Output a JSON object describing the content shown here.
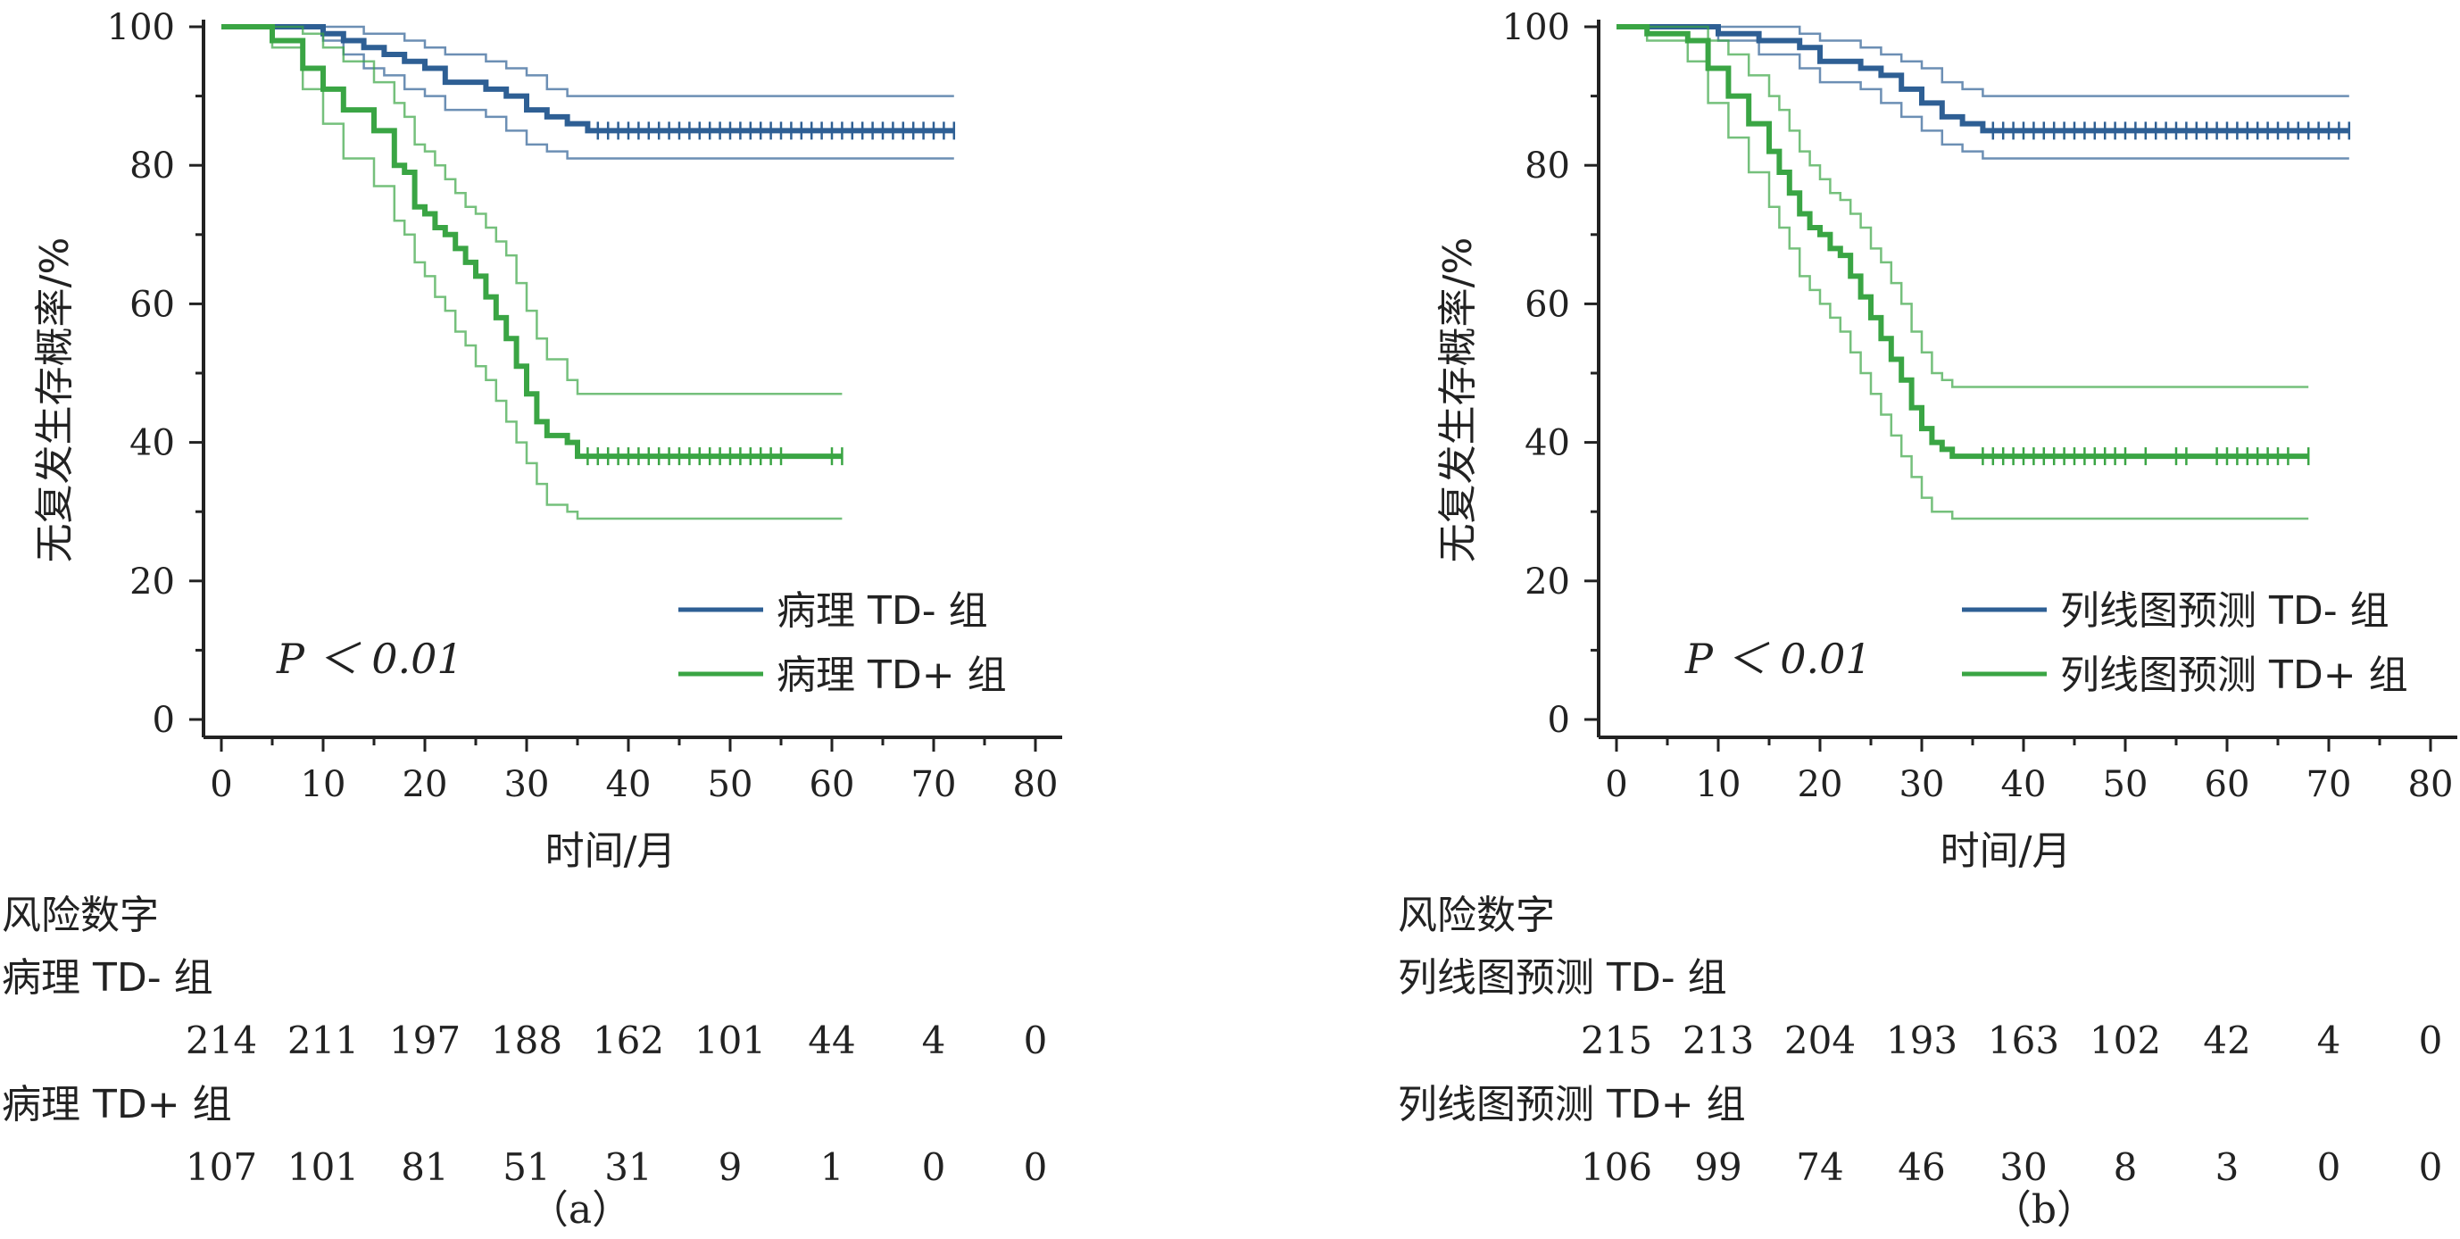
{
  "colors": {
    "td_minus": "#2e5f94",
    "td_plus": "#3aa544",
    "axis": "#222222"
  },
  "chart_data": [
    {
      "type": "line",
      "panel_caption": "（a）",
      "xlabel": "时间/月",
      "ylabel": "无复发生存概率/%",
      "xlim": [
        0,
        80
      ],
      "ylim": [
        0,
        100
      ],
      "xticks": [
        0,
        10,
        20,
        30,
        40,
        50,
        60,
        70,
        80
      ],
      "yticks": [
        0,
        20,
        40,
        60,
        80,
        100
      ],
      "p_value_text": "P ＜ 0.01",
      "legend_position": "bottom-right",
      "series": [
        {
          "name": "病理 TD- 组",
          "color": "#2e5f94",
          "x": [
            0,
            7,
            10,
            12,
            14,
            16,
            18,
            20,
            22,
            26,
            28,
            30,
            32,
            34,
            36,
            72
          ],
          "y": [
            100,
            100,
            99,
            98,
            97,
            96,
            95,
            94,
            92,
            91,
            90,
            88,
            87,
            86,
            85,
            85
          ],
          "ci_upper": [
            100,
            100,
            100,
            100,
            99,
            99,
            98,
            97,
            96,
            95,
            94,
            93,
            91,
            90,
            90,
            90
          ],
          "ci_lower": [
            100,
            100,
            98,
            96,
            94,
            93,
            91,
            90,
            88,
            87,
            85,
            83,
            82,
            81,
            81,
            81
          ],
          "censor_x": [
            37,
            38,
            39,
            40,
            41,
            42,
            43,
            44,
            45,
            46,
            47,
            48,
            49,
            50,
            51,
            52,
            53,
            54,
            55,
            56,
            57,
            58,
            59,
            60,
            61,
            62,
            63,
            64,
            65,
            66,
            67,
            68,
            69,
            70,
            71,
            72
          ]
        },
        {
          "name": "病理 TD+ 组",
          "color": "#3aa544",
          "x": [
            0,
            5,
            8,
            10,
            12,
            15,
            17,
            18,
            19,
            20,
            21,
            22,
            23,
            24,
            25,
            26,
            27,
            28,
            29,
            30,
            31,
            32,
            34,
            35,
            61
          ],
          "y": [
            100,
            98,
            94,
            91,
            88,
            85,
            80,
            79,
            74,
            73,
            71,
            70,
            68,
            66,
            64,
            61,
            58,
            55,
            51,
            47,
            43,
            41,
            40,
            38,
            38
          ],
          "ci_upper": [
            100,
            100,
            99,
            97,
            95,
            92,
            89,
            87,
            83,
            82,
            80,
            78,
            76,
            74,
            73,
            71,
            69,
            67,
            63,
            59,
            55,
            52,
            49,
            47,
            47
          ],
          "ci_lower": [
            100,
            97,
            91,
            86,
            81,
            77,
            72,
            70,
            66,
            64,
            61,
            59,
            56,
            54,
            51,
            49,
            46,
            43,
            40,
            37,
            34,
            31,
            30,
            29,
            29
          ],
          "censor_x": [
            36,
            37,
            38,
            39,
            40,
            41,
            42,
            43,
            44,
            45,
            46,
            47,
            48,
            49,
            50,
            51,
            52,
            53,
            54,
            55,
            60,
            61
          ]
        }
      ],
      "risk_table": {
        "title": "风险数字",
        "time_points": [
          0,
          10,
          20,
          30,
          40,
          50,
          60,
          70,
          80
        ],
        "rows": [
          {
            "label": "病理 TD- 组",
            "values": [
              "214",
              "211",
              "197",
              "188",
              "162",
              "101",
              "44",
              "4",
              "0"
            ]
          },
          {
            "label": "病理 TD+ 组",
            "values": [
              "107",
              "101",
              "81",
              "51",
              "31",
              "9",
              "1",
              "0",
              "0"
            ]
          }
        ]
      }
    },
    {
      "type": "line",
      "panel_caption": "（b）",
      "xlabel": "时间/月",
      "ylabel": "无复发生存概率/%",
      "xlim": [
        0,
        80
      ],
      "ylim": [
        0,
        100
      ],
      "xticks": [
        0,
        10,
        20,
        30,
        40,
        50,
        60,
        70,
        80
      ],
      "yticks": [
        0,
        20,
        40,
        60,
        80,
        100
      ],
      "p_value_text": "P ＜ 0.01",
      "legend_position": "bottom-right",
      "series": [
        {
          "name": "列线图预测 TD- 组",
          "color": "#2e5f94",
          "x": [
            0,
            7,
            10,
            14,
            18,
            20,
            24,
            26,
            28,
            30,
            32,
            34,
            36,
            72
          ],
          "y": [
            100,
            100,
            99,
            98,
            97,
            95,
            94,
            93,
            91,
            89,
            87,
            86,
            85,
            85
          ],
          "ci_upper": [
            100,
            100,
            100,
            100,
            99,
            98,
            97,
            96,
            95,
            94,
            92,
            91,
            90,
            90
          ],
          "ci_lower": [
            100,
            100,
            98,
            96,
            94,
            92,
            91,
            89,
            87,
            85,
            83,
            82,
            81,
            81
          ],
          "censor_x": [
            37,
            38,
            39,
            40,
            41,
            42,
            43,
            44,
            45,
            46,
            47,
            48,
            49,
            50,
            51,
            52,
            53,
            54,
            55,
            56,
            57,
            58,
            59,
            60,
            61,
            62,
            63,
            64,
            65,
            66,
            67,
            68,
            69,
            70,
            71,
            72
          ]
        },
        {
          "name": "列线图预测 TD+ 组",
          "color": "#3aa544",
          "x": [
            0,
            3,
            7,
            9,
            11,
            13,
            15,
            16,
            17,
            18,
            19,
            20,
            21,
            22,
            23,
            24,
            25,
            26,
            27,
            28,
            29,
            30,
            31,
            32,
            33,
            68
          ],
          "y": [
            100,
            99,
            98,
            94,
            90,
            86,
            82,
            79,
            76,
            73,
            71,
            70,
            68,
            67,
            64,
            61,
            58,
            55,
            52,
            49,
            45,
            42,
            40,
            39,
            38,
            38
          ],
          "ci_upper": [
            100,
            100,
            100,
            98,
            96,
            93,
            90,
            88,
            85,
            82,
            80,
            78,
            76,
            75,
            73,
            71,
            68,
            66,
            63,
            60,
            56,
            53,
            50,
            49,
            48,
            48
          ],
          "ci_lower": [
            100,
            98,
            95,
            89,
            84,
            79,
            74,
            71,
            68,
            64,
            62,
            60,
            58,
            56,
            53,
            50,
            47,
            44,
            41,
            38,
            35,
            32,
            30,
            30,
            29,
            29
          ],
          "censor_x": [
            36,
            37,
            38,
            39,
            40,
            41,
            42,
            43,
            44,
            45,
            46,
            47,
            48,
            49,
            50,
            52,
            55,
            56,
            59,
            60,
            61,
            62,
            63,
            64,
            65,
            66,
            68
          ]
        }
      ],
      "risk_table": {
        "title": "风险数字",
        "time_points": [
          0,
          10,
          20,
          30,
          40,
          50,
          60,
          70,
          80
        ],
        "rows": [
          {
            "label": "列线图预测 TD- 组",
            "values": [
              "215",
              "213",
              "204",
              "193",
              "163",
              "102",
              "42",
              "4",
              "0"
            ]
          },
          {
            "label": "列线图预测 TD+ 组",
            "values": [
              "106",
              "99",
              "74",
              "46",
              "30",
              "8",
              "3",
              "0",
              "0"
            ]
          }
        ]
      }
    }
  ]
}
